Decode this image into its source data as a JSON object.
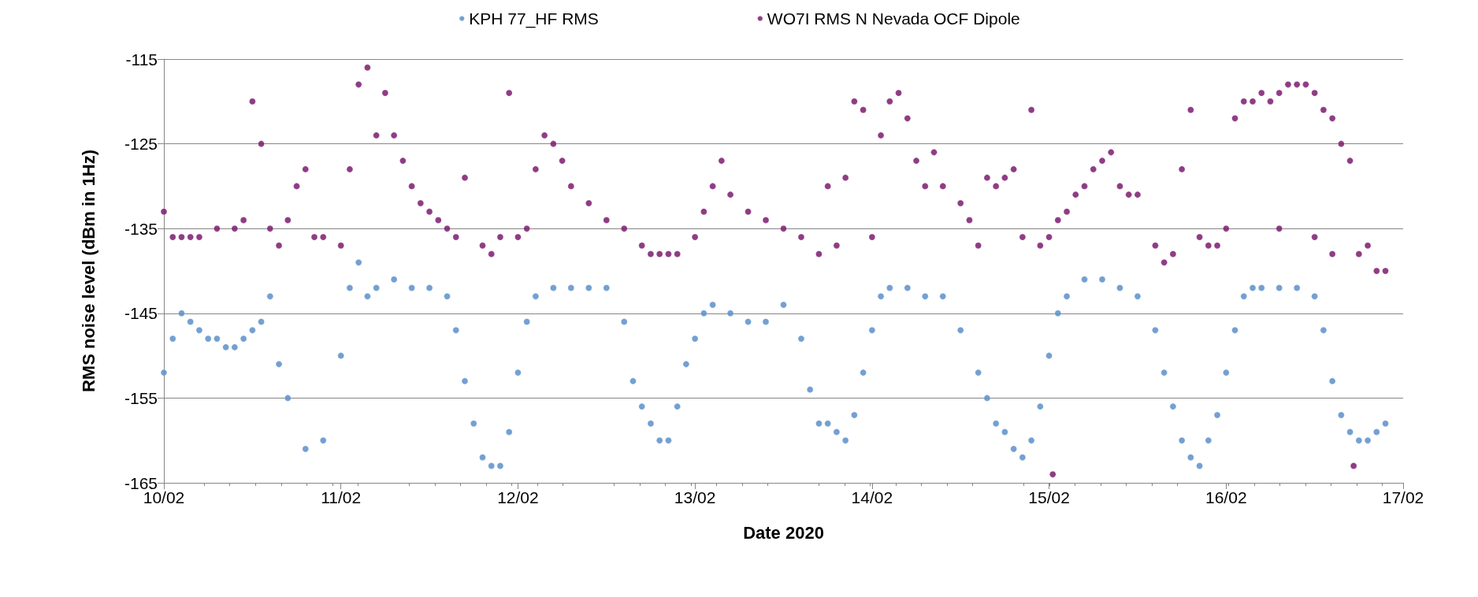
{
  "chart_data": {
    "type": "scatter",
    "xlabel": "Date 2020",
    "ylabel": "RMS noise level (dBm in 1Hz)",
    "xlim": [
      "2020-02-10",
      "2020-02-17"
    ],
    "xticks": [
      {
        "value": "2020-02-10",
        "label": "10/02"
      },
      {
        "value": "2020-02-11",
        "label": "11/02"
      },
      {
        "value": "2020-02-12",
        "label": "12/02"
      },
      {
        "value": "2020-02-13",
        "label": "13/02"
      },
      {
        "value": "2020-02-14",
        "label": "14/02"
      },
      {
        "value": "2020-02-15",
        "label": "15/02"
      },
      {
        "value": "2020-02-16",
        "label": "16/02"
      },
      {
        "value": "2020-02-17",
        "label": "17/02"
      }
    ],
    "ylim": [
      -165,
      -115
    ],
    "yticks": [
      -165,
      -155,
      -145,
      -135,
      -125,
      -115
    ],
    "grid": "y",
    "legend": "top",
    "marker": "circle",
    "series": [
      {
        "name": "KPH 77_HF RMS",
        "color": "#5b8fc9",
        "x": [
          "2020-02-10T00:00",
          "2020-02-10T01:12",
          "2020-02-10T02:24",
          "2020-02-10T03:36",
          "2020-02-10T04:48",
          "2020-02-10T06:00",
          "2020-02-10T07:12",
          "2020-02-10T08:24",
          "2020-02-10T09:36",
          "2020-02-10T10:48",
          "2020-02-10T12:00",
          "2020-02-10T13:12",
          "2020-02-10T14:24",
          "2020-02-10T15:36",
          "2020-02-10T16:48",
          "2020-02-10T19:12",
          "2020-02-10T21:36",
          "2020-02-11T00:00",
          "2020-02-11T01:12",
          "2020-02-11T02:24",
          "2020-02-11T03:36",
          "2020-02-11T04:48",
          "2020-02-11T07:12",
          "2020-02-11T09:36",
          "2020-02-11T12:00",
          "2020-02-11T14:24",
          "2020-02-11T15:36",
          "2020-02-11T16:48",
          "2020-02-11T18:00",
          "2020-02-11T19:12",
          "2020-02-11T20:24",
          "2020-02-11T21:36",
          "2020-02-11T22:48",
          "2020-02-12T00:00",
          "2020-02-12T01:12",
          "2020-02-12T02:24",
          "2020-02-12T04:48",
          "2020-02-12T07:12",
          "2020-02-12T09:36",
          "2020-02-12T12:00",
          "2020-02-12T14:24",
          "2020-02-12T15:36",
          "2020-02-12T16:48",
          "2020-02-12T18:00",
          "2020-02-12T19:12",
          "2020-02-12T20:24",
          "2020-02-12T21:36",
          "2020-02-12T22:48",
          "2020-02-13T00:00",
          "2020-02-13T01:12",
          "2020-02-13T02:24",
          "2020-02-13T04:48",
          "2020-02-13T07:12",
          "2020-02-13T09:36",
          "2020-02-13T12:00",
          "2020-02-13T14:24",
          "2020-02-13T15:36",
          "2020-02-13T16:48",
          "2020-02-13T18:00",
          "2020-02-13T19:12",
          "2020-02-13T20:24",
          "2020-02-13T21:36",
          "2020-02-13T22:48",
          "2020-02-14T00:00",
          "2020-02-14T01:12",
          "2020-02-14T02:24",
          "2020-02-14T04:48",
          "2020-02-14T07:12",
          "2020-02-14T09:36",
          "2020-02-14T12:00",
          "2020-02-14T14:24",
          "2020-02-14T15:36",
          "2020-02-14T16:48",
          "2020-02-14T18:00",
          "2020-02-14T19:12",
          "2020-02-14T20:24",
          "2020-02-14T21:36",
          "2020-02-14T22:48",
          "2020-02-15T00:00",
          "2020-02-15T01:12",
          "2020-02-15T02:24",
          "2020-02-15T04:48",
          "2020-02-15T07:12",
          "2020-02-15T09:36",
          "2020-02-15T12:00",
          "2020-02-15T14:24",
          "2020-02-15T15:36",
          "2020-02-15T16:48",
          "2020-02-15T18:00",
          "2020-02-15T19:12",
          "2020-02-15T20:24",
          "2020-02-15T21:36",
          "2020-02-15T22:48",
          "2020-02-16T00:00",
          "2020-02-16T01:12",
          "2020-02-16T02:24",
          "2020-02-16T03:36",
          "2020-02-16T04:48",
          "2020-02-16T07:12",
          "2020-02-16T09:36",
          "2020-02-16T12:00",
          "2020-02-16T13:12",
          "2020-02-16T14:24",
          "2020-02-16T15:36",
          "2020-02-16T16:48",
          "2020-02-16T18:00",
          "2020-02-16T19:12",
          "2020-02-16T20:24",
          "2020-02-16T21:36"
        ],
        "values": [
          -152,
          -148,
          -145,
          -146,
          -147,
          -148,
          -148,
          -149,
          -149,
          -148,
          -147,
          -146,
          -143,
          -151,
          -155,
          -161,
          -160,
          -150,
          -142,
          -139,
          -143,
          -142,
          -141,
          -142,
          -142,
          -143,
          -147,
          -153,
          -158,
          -162,
          -163,
          -163,
          -159,
          -152,
          -146,
          -143,
          -142,
          -142,
          -142,
          -142,
          -146,
          -153,
          -156,
          -158,
          -160,
          -160,
          -156,
          -151,
          -148,
          -145,
          -144,
          -145,
          -146,
          -146,
          -144,
          -148,
          -154,
          -158,
          -158,
          -159,
          -160,
          -157,
          -152,
          -147,
          -143,
          -142,
          -142,
          -143,
          -143,
          -147,
          -152,
          -155,
          -158,
          -159,
          -161,
          -162,
          -160,
          -156,
          -150,
          -145,
          -143,
          -141,
          -141,
          -142,
          -143,
          -147,
          -152,
          -156,
          -160,
          -162,
          -163,
          -160,
          -157,
          -152,
          -147,
          -143,
          -142,
          -142,
          -142,
          -142,
          -143,
          -147,
          -153,
          -157,
          -159,
          -160,
          -160,
          -159,
          -158
        ]
      },
      {
        "name": "WO7I RMS N Nevada OCF Dipole",
        "color": "#7b1a6e",
        "x": [
          "2020-02-10T00:00",
          "2020-02-10T01:12",
          "2020-02-10T02:24",
          "2020-02-10T03:36",
          "2020-02-10T04:48",
          "2020-02-10T07:12",
          "2020-02-10T09:36",
          "2020-02-10T10:48",
          "2020-02-10T12:00",
          "2020-02-10T13:12",
          "2020-02-10T14:24",
          "2020-02-10T15:36",
          "2020-02-10T16:48",
          "2020-02-10T18:00",
          "2020-02-10T19:12",
          "2020-02-10T20:24",
          "2020-02-10T21:36",
          "2020-02-11T00:00",
          "2020-02-11T01:12",
          "2020-02-11T02:24",
          "2020-02-11T03:36",
          "2020-02-11T04:48",
          "2020-02-11T06:00",
          "2020-02-11T07:12",
          "2020-02-11T08:24",
          "2020-02-11T09:36",
          "2020-02-11T10:48",
          "2020-02-11T12:00",
          "2020-02-11T13:12",
          "2020-02-11T14:24",
          "2020-02-11T15:36",
          "2020-02-11T16:48",
          "2020-02-11T19:12",
          "2020-02-11T20:24",
          "2020-02-11T21:36",
          "2020-02-11T22:48",
          "2020-02-12T00:00",
          "2020-02-12T01:12",
          "2020-02-12T02:24",
          "2020-02-12T03:36",
          "2020-02-12T04:48",
          "2020-02-12T06:00",
          "2020-02-12T07:12",
          "2020-02-12T09:36",
          "2020-02-12T12:00",
          "2020-02-12T14:24",
          "2020-02-12T16:48",
          "2020-02-12T18:00",
          "2020-02-12T19:12",
          "2020-02-12T20:24",
          "2020-02-12T21:36",
          "2020-02-13T00:00",
          "2020-02-13T01:12",
          "2020-02-13T02:24",
          "2020-02-13T03:36",
          "2020-02-13T04:48",
          "2020-02-13T07:12",
          "2020-02-13T09:36",
          "2020-02-13T12:00",
          "2020-02-13T14:24",
          "2020-02-13T16:48",
          "2020-02-13T18:00",
          "2020-02-13T19:12",
          "2020-02-13T20:24",
          "2020-02-13T21:36",
          "2020-02-13T22:48",
          "2020-02-14T00:00",
          "2020-02-14T01:12",
          "2020-02-14T02:24",
          "2020-02-14T03:36",
          "2020-02-14T04:48",
          "2020-02-14T06:00",
          "2020-02-14T07:12",
          "2020-02-14T08:24",
          "2020-02-14T09:36",
          "2020-02-14T12:00",
          "2020-02-14T13:12",
          "2020-02-14T14:24",
          "2020-02-14T15:36",
          "2020-02-14T16:48",
          "2020-02-14T18:00",
          "2020-02-14T19:12",
          "2020-02-14T20:24",
          "2020-02-14T21:36",
          "2020-02-14T22:48",
          "2020-02-15T00:00",
          "2020-02-15T00:30",
          "2020-02-15T01:12",
          "2020-02-15T02:24",
          "2020-02-15T03:36",
          "2020-02-15T04:48",
          "2020-02-15T06:00",
          "2020-02-15T07:12",
          "2020-02-15T08:24",
          "2020-02-15T09:36",
          "2020-02-15T10:48",
          "2020-02-15T12:00",
          "2020-02-15T14:24",
          "2020-02-15T15:36",
          "2020-02-15T16:48",
          "2020-02-15T18:00",
          "2020-02-15T19:12",
          "2020-02-15T20:24",
          "2020-02-15T21:36",
          "2020-02-15T22:48",
          "2020-02-16T00:00",
          "2020-02-16T01:12",
          "2020-02-16T02:24",
          "2020-02-16T03:36",
          "2020-02-16T04:48",
          "2020-02-16T06:00",
          "2020-02-16T07:12",
          "2020-02-16T07:12",
          "2020-02-16T08:24",
          "2020-02-16T09:36",
          "2020-02-16T10:48",
          "2020-02-16T12:00",
          "2020-02-16T12:00",
          "2020-02-16T13:12",
          "2020-02-16T14:24",
          "2020-02-16T14:24",
          "2020-02-16T15:36",
          "2020-02-16T16:48",
          "2020-02-16T17:17",
          "2020-02-16T18:00",
          "2020-02-16T19:12",
          "2020-02-16T20:24",
          "2020-02-16T21:36"
        ],
        "values": [
          -133,
          -136,
          -136,
          -136,
          -136,
          -135,
          -135,
          -134,
          -120,
          -125,
          -135,
          -137,
          -134,
          -130,
          -128,
          -136,
          -136,
          -137,
          -128,
          -118,
          -116,
          -124,
          -119,
          -124,
          -127,
          -130,
          -132,
          -133,
          -134,
          -135,
          -136,
          -129,
          -137,
          -138,
          -136,
          -119,
          -136,
          -135,
          -128,
          -124,
          -125,
          -127,
          -130,
          -132,
          -134,
          -135,
          -137,
          -138,
          -138,
          -138,
          -138,
          -136,
          -133,
          -130,
          -127,
          -131,
          -133,
          -134,
          -135,
          -136,
          -138,
          -130,
          -137,
          -129,
          -120,
          -121,
          -136,
          -124,
          -120,
          -119,
          -122,
          -127,
          -130,
          -126,
          -130,
          -132,
          -134,
          -137,
          -129,
          -130,
          -129,
          -128,
          -136,
          -121,
          -137,
          -136,
          -164,
          -134,
          -133,
          -131,
          -130,
          -128,
          -127,
          -126,
          -130,
          -131,
          -131,
          -137,
          -139,
          -138,
          -128,
          -121,
          -136,
          -137,
          -137,
          -135,
          -122,
          -120,
          -120,
          -119,
          -120,
          -119,
          -135,
          -118,
          -118,
          -118,
          -119,
          -136,
          -121,
          -122,
          -138,
          -125,
          -127,
          -163,
          -138,
          -137,
          -140,
          -140
        ]
      }
    ]
  }
}
